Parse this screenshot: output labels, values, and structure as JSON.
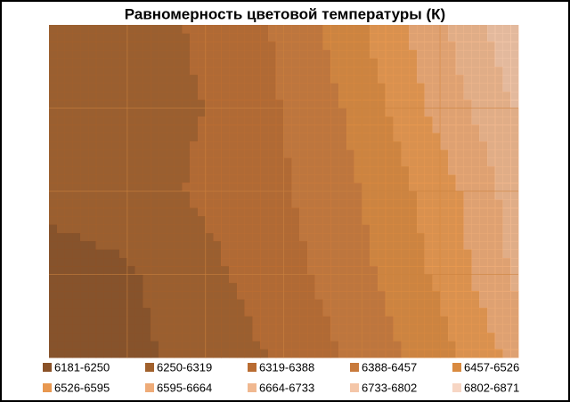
{
  "chart_data": {
    "type": "contour",
    "title": "Равномерность  цветовой температуры (К)",
    "z": [
      [
        6280,
        6290,
        6330,
        6400,
        6520,
        6650,
        6790
      ],
      [
        6260,
        6290,
        6320,
        6390,
        6480,
        6620,
        6740
      ],
      [
        6270,
        6290,
        6330,
        6380,
        6460,
        6560,
        6700
      ],
      [
        6220,
        6240,
        6300,
        6360,
        6440,
        6540,
        6680
      ],
      [
        6200,
        6230,
        6280,
        6330,
        6410,
        6500,
        6620
      ]
    ],
    "levels": [
      6181,
      6250,
      6319,
      6388,
      6457,
      6526,
      6595,
      6664,
      6733,
      6802,
      6871
    ],
    "series": [
      {
        "name": "6181-6250",
        "color": "#8a5228"
      },
      {
        "name": "6250-6319",
        "color": "#a0602c"
      },
      {
        "name": "6319-6388",
        "color": "#b96c32"
      },
      {
        "name": "6388-6457",
        "color": "#c87a3c"
      },
      {
        "name": "6457-6526",
        "color": "#d98a40"
      },
      {
        "name": "6526-6595",
        "color": "#e89850"
      },
      {
        "name": "6595-6664",
        "color": "#eeab78"
      },
      {
        "name": "6664-6733",
        "color": "#f0b890"
      },
      {
        "name": "6733-6802",
        "color": "#f4c6a8"
      },
      {
        "name": "6802-6871",
        "color": "#f7d6c4"
      }
    ],
    "grid": true
  }
}
